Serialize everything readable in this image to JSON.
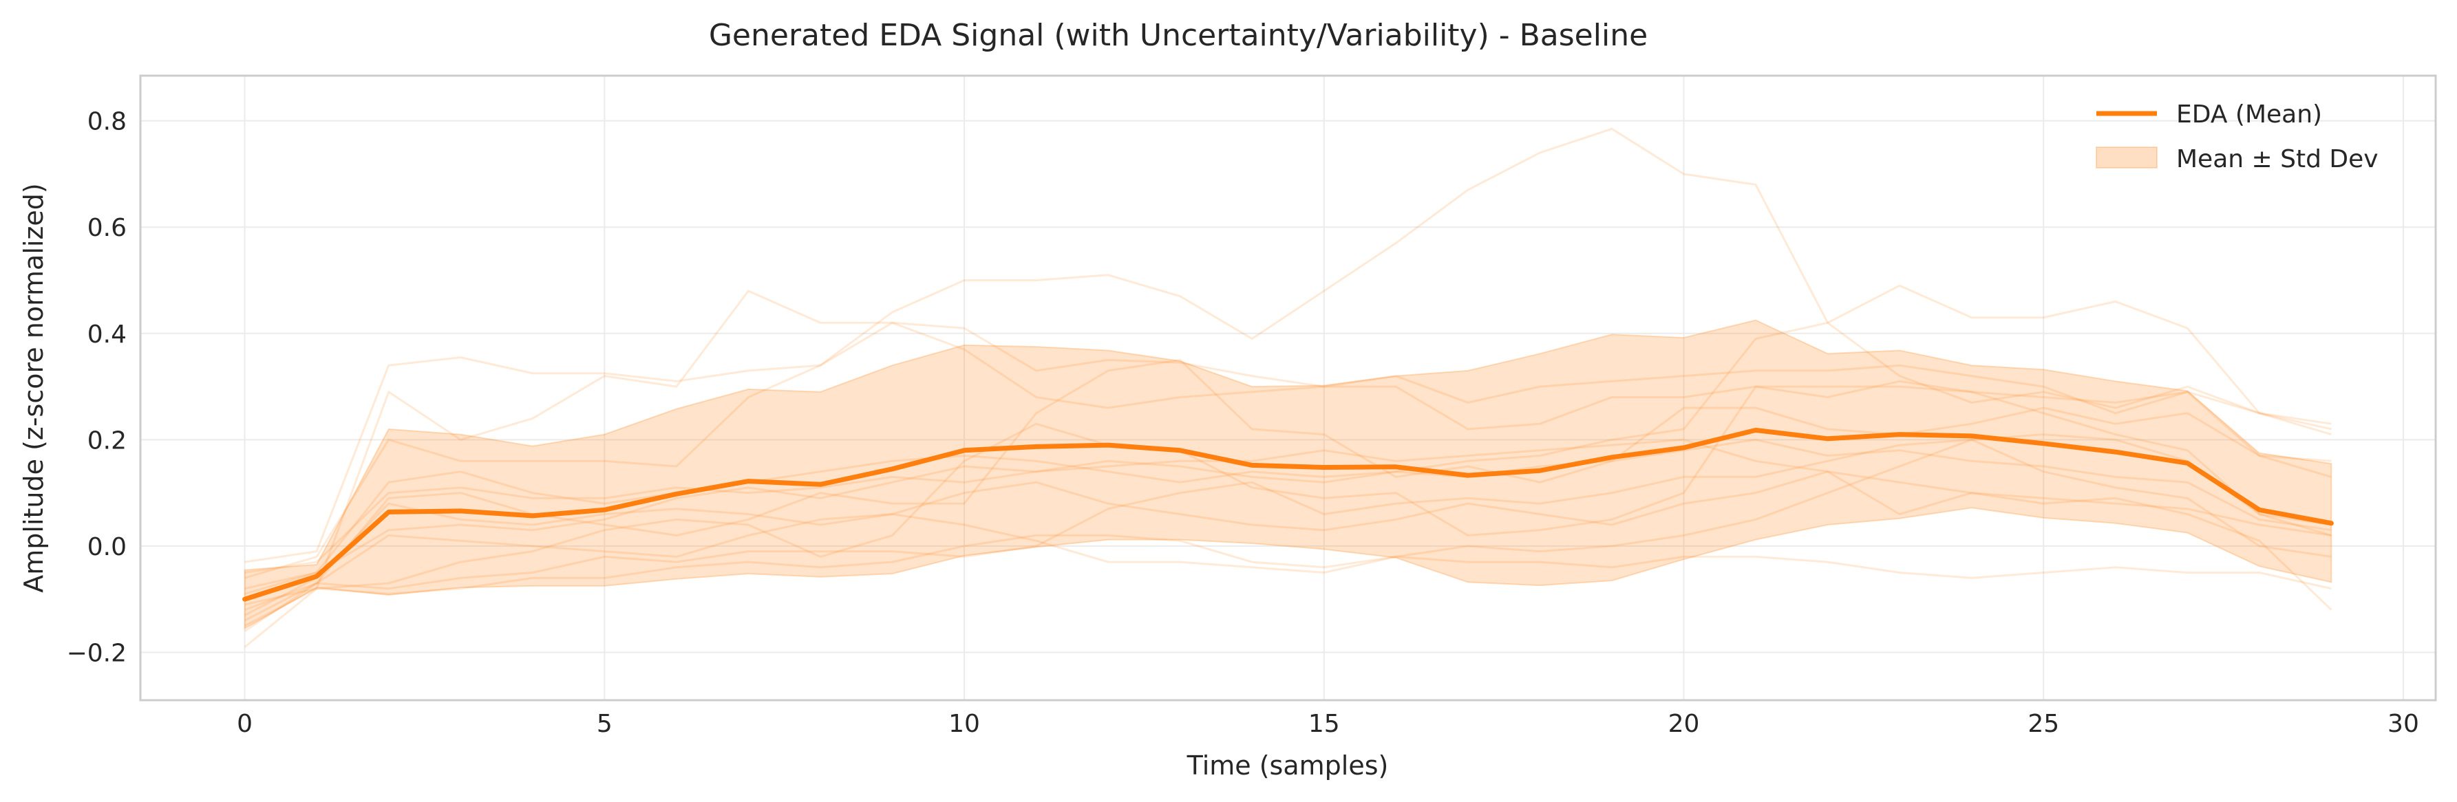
{
  "chart_data": {
    "type": "line",
    "title": "Generated EDA Signal (with Uncertainty/Variability) - Baseline",
    "xlabel": "Time (samples)",
    "ylabel": "Amplitude (z-score normalized)",
    "xlim": [
      -1.45,
      30.45
    ],
    "ylim": [
      -0.29,
      0.885
    ],
    "xticks": [
      0,
      5,
      10,
      15,
      20,
      25,
      30
    ],
    "xtick_labels": [
      "0",
      "5",
      "10",
      "15",
      "20",
      "25",
      "30"
    ],
    "yticks": [
      -0.2,
      0.0,
      0.2,
      0.4,
      0.6,
      0.8
    ],
    "ytick_labels": [
      "−0.2",
      "0.0",
      "0.2",
      "0.4",
      "0.6",
      "0.8"
    ],
    "grid": true,
    "legend_position": "upper right",
    "colors": {
      "mean": "#ff7f0e",
      "band": "#fdd9bb",
      "samples": "#ff7f0e",
      "grid": "#ebebeb",
      "frame": "#cccccc",
      "text": "#262626"
    },
    "x": [
      0,
      1,
      2,
      3,
      4,
      5,
      6,
      7,
      8,
      9,
      10,
      11,
      12,
      13,
      14,
      15,
      16,
      17,
      18,
      19,
      20,
      21,
      22,
      23,
      24,
      25,
      26,
      27,
      28,
      29
    ],
    "series": [
      {
        "name": "EDA (Mean)",
        "kind": "line",
        "values": [
          -0.1,
          -0.057,
          0.064,
          0.066,
          0.057,
          0.068,
          0.098,
          0.122,
          0.116,
          0.145,
          0.18,
          0.187,
          0.19,
          0.18,
          0.152,
          0.148,
          0.149,
          0.133,
          0.142,
          0.167,
          0.185,
          0.218,
          0.202,
          0.21,
          0.207,
          0.193,
          0.177,
          0.156,
          0.068,
          0.043
        ]
      },
      {
        "name": "Mean ± Std Dev",
        "kind": "band",
        "upper": [
          -0.045,
          -0.035,
          0.22,
          0.21,
          0.188,
          0.21,
          0.258,
          0.295,
          0.29,
          0.34,
          0.378,
          0.375,
          0.368,
          0.348,
          0.3,
          0.302,
          0.32,
          0.33,
          0.362,
          0.398,
          0.392,
          0.425,
          0.362,
          0.368,
          0.34,
          0.332,
          0.31,
          0.292,
          0.175,
          0.155
        ],
        "lower": [
          -0.155,
          -0.078,
          -0.092,
          -0.078,
          -0.075,
          -0.075,
          -0.062,
          -0.052,
          -0.058,
          -0.052,
          -0.018,
          -0.002,
          0.012,
          0.012,
          0.005,
          -0.006,
          -0.022,
          -0.068,
          -0.074,
          -0.065,
          -0.025,
          0.012,
          0.04,
          0.052,
          0.072,
          0.053,
          0.043,
          0.025,
          -0.038,
          -0.068
        ]
      }
    ],
    "sample_traces": [
      [
        -0.03,
        -0.01,
        0.34,
        0.355,
        0.325,
        0.325,
        0.31,
        0.33,
        0.34,
        0.42,
        0.41,
        0.33,
        0.35,
        0.345,
        0.32,
        0.3,
        0.3,
        0.22,
        0.23,
        0.28,
        0.28,
        0.3,
        0.28,
        0.31,
        0.29,
        0.28,
        0.27,
        0.29,
        0.25,
        0.23
      ],
      [
        -0.19,
        -0.08,
        0.29,
        0.2,
        0.24,
        0.32,
        0.3,
        0.48,
        0.42,
        0.42,
        0.37,
        0.28,
        0.26,
        0.28,
        0.29,
        0.3,
        0.32,
        0.27,
        0.3,
        0.31,
        0.32,
        0.33,
        0.33,
        0.34,
        0.32,
        0.3,
        0.25,
        0.29,
        0.17,
        0.16
      ],
      [
        -0.06,
        -0.02,
        0.2,
        0.16,
        0.16,
        0.16,
        0.15,
        0.28,
        0.34,
        0.44,
        0.5,
        0.5,
        0.51,
        0.47,
        0.39,
        0.48,
        0.57,
        0.67,
        0.74,
        0.785,
        0.7,
        0.68,
        0.42,
        0.32,
        0.27,
        0.29,
        0.26,
        0.3,
        0.25,
        0.22
      ],
      [
        -0.09,
        -0.05,
        0.12,
        0.14,
        0.1,
        0.08,
        0.1,
        0.12,
        0.14,
        0.16,
        0.17,
        0.16,
        0.14,
        0.12,
        0.14,
        0.13,
        0.14,
        0.16,
        0.17,
        0.2,
        0.22,
        0.39,
        0.42,
        0.49,
        0.43,
        0.43,
        0.46,
        0.41,
        0.25,
        0.21
      ],
      [
        -0.12,
        -0.07,
        0.09,
        0.1,
        0.06,
        0.04,
        0.02,
        0.05,
        0.1,
        0.08,
        0.08,
        0.25,
        0.33,
        0.35,
        0.22,
        0.21,
        0.13,
        0.15,
        0.12,
        0.16,
        0.26,
        0.26,
        0.22,
        0.21,
        0.23,
        0.26,
        0.23,
        0.25,
        0.17,
        0.13
      ],
      [
        -0.15,
        -0.08,
        -0.07,
        -0.03,
        -0.01,
        0.03,
        0.05,
        0.04,
        -0.02,
        0.02,
        0.16,
        0.23,
        0.19,
        0.18,
        0.11,
        0.09,
        0.1,
        0.02,
        0.03,
        0.05,
        0.1,
        0.3,
        0.3,
        0.3,
        0.29,
        0.25,
        0.21,
        0.18,
        0.06,
        0.02
      ],
      [
        -0.16,
        -0.07,
        -0.08,
        -0.06,
        -0.05,
        -0.02,
        -0.03,
        -0.01,
        -0.01,
        -0.01,
        -0.02,
        0.0,
        0.07,
        0.1,
        0.12,
        0.06,
        0.08,
        0.09,
        0.08,
        0.1,
        0.13,
        0.13,
        0.16,
        0.19,
        0.2,
        0.21,
        0.2,
        0.16,
        0.06,
        0.04
      ],
      [
        -0.11,
        -0.08,
        -0.09,
        -0.08,
        -0.06,
        -0.06,
        -0.04,
        -0.03,
        -0.04,
        -0.03,
        0.0,
        0.02,
        0.02,
        0.01,
        -0.03,
        -0.04,
        -0.02,
        0.0,
        -0.01,
        0.0,
        0.02,
        0.05,
        0.1,
        0.15,
        0.2,
        0.14,
        0.11,
        0.09,
        0.0,
        -0.02
      ],
      [
        -0.14,
        -0.07,
        0.02,
        0.01,
        0.0,
        -0.01,
        -0.02,
        0.02,
        0.05,
        0.06,
        0.04,
        0.01,
        -0.03,
        -0.03,
        -0.04,
        -0.05,
        -0.02,
        -0.03,
        -0.03,
        -0.04,
        -0.02,
        -0.02,
        -0.03,
        -0.05,
        -0.06,
        -0.05,
        -0.04,
        -0.05,
        -0.05,
        -0.08
      ],
      [
        -0.13,
        -0.06,
        0.08,
        0.05,
        0.04,
        0.06,
        0.07,
        0.06,
        0.04,
        0.06,
        0.1,
        0.12,
        0.08,
        0.06,
        0.04,
        0.03,
        0.05,
        0.08,
        0.06,
        0.04,
        0.08,
        0.1,
        0.14,
        0.06,
        0.1,
        0.08,
        0.09,
        0.06,
        0.01,
        -0.12
      ],
      [
        -0.05,
        -0.03,
        0.1,
        0.11,
        0.09,
        0.09,
        0.11,
        0.1,
        0.11,
        0.13,
        0.12,
        0.14,
        0.15,
        0.16,
        0.16,
        0.18,
        0.16,
        0.17,
        0.18,
        0.19,
        0.2,
        0.16,
        0.14,
        0.12,
        0.1,
        0.09,
        0.08,
        0.07,
        0.04,
        0.02
      ],
      [
        -0.08,
        -0.05,
        0.03,
        0.04,
        0.03,
        0.05,
        0.09,
        0.11,
        0.09,
        0.12,
        0.15,
        0.14,
        0.16,
        0.15,
        0.13,
        0.12,
        0.14,
        0.13,
        0.15,
        0.16,
        0.18,
        0.2,
        0.17,
        0.18,
        0.16,
        0.15,
        0.13,
        0.12,
        0.05,
        0.03
      ]
    ]
  }
}
